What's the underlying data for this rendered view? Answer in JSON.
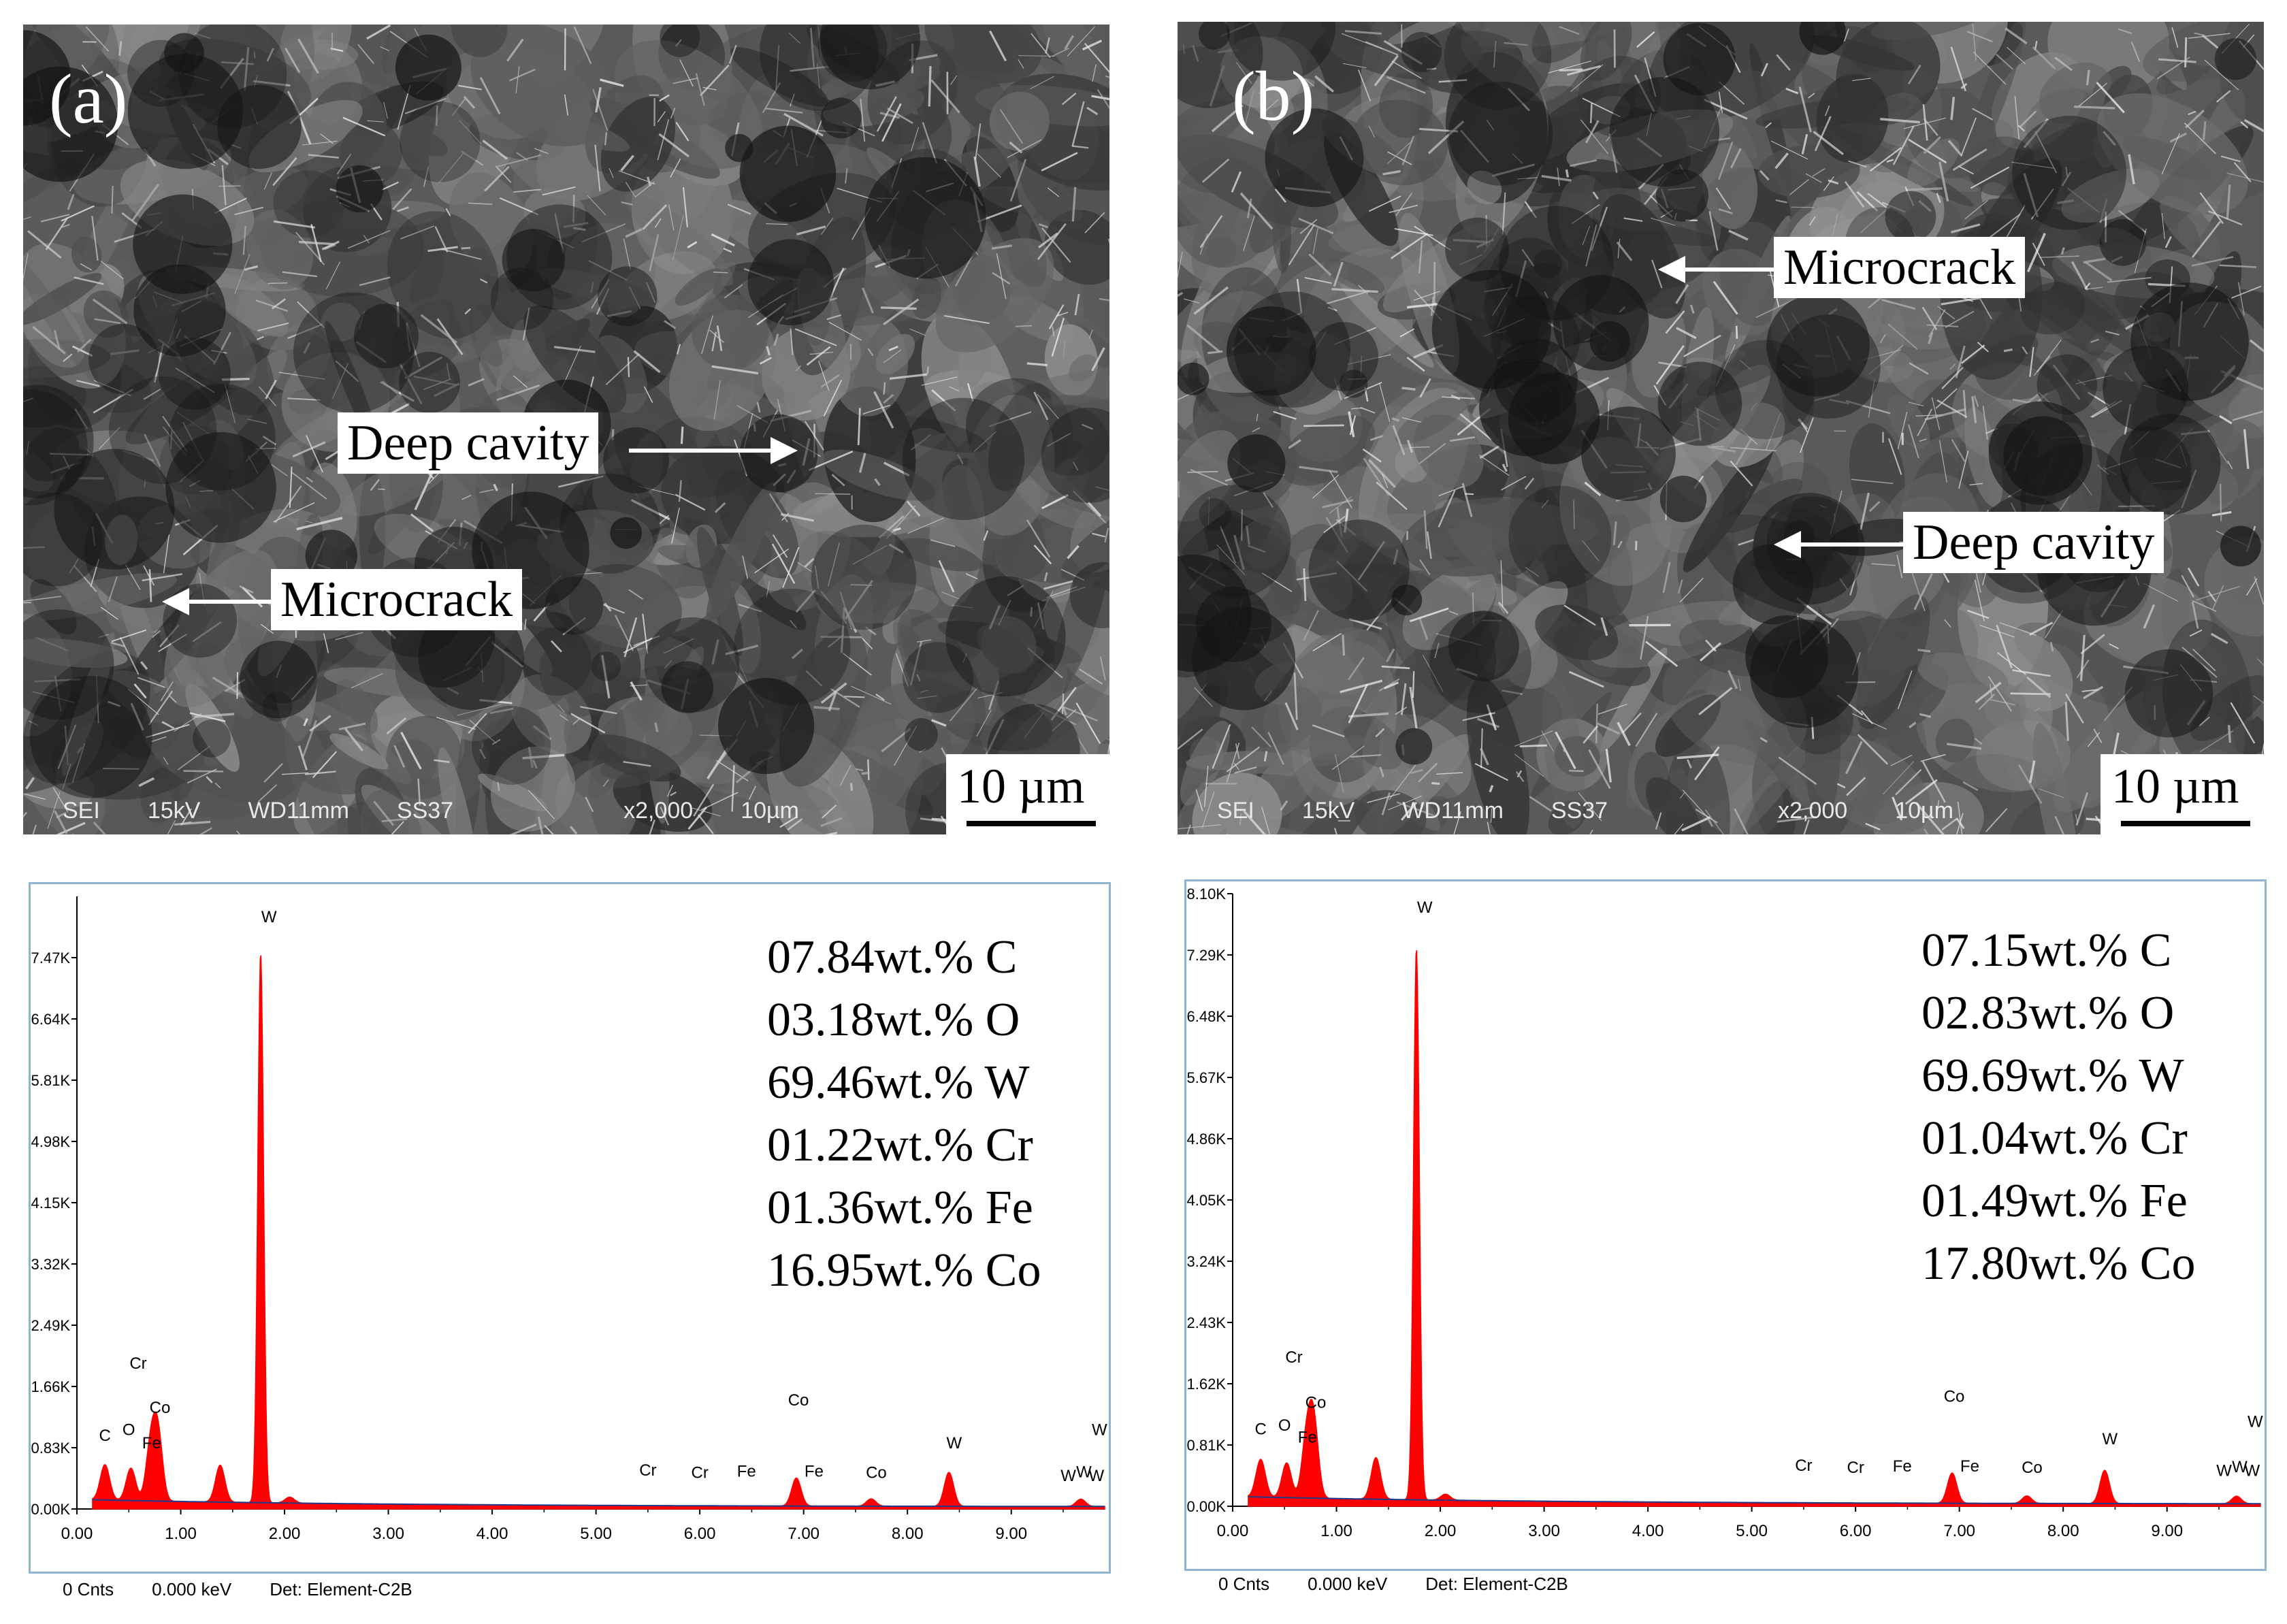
{
  "figure": {
    "panels": [
      {
        "label": "(a)",
        "callouts": {
          "deep_cavity": "Deep cavity",
          "microcrack": "Microcrack"
        },
        "databar": [
          "SEI",
          "15kV",
          "WD11mm",
          "SS37",
          "x2,000",
          "10µm"
        ],
        "scale_text": "10 µm"
      },
      {
        "label": "(b)",
        "callouts": {
          "deep_cavity": "Deep cavity",
          "microcrack": "Microcrack"
        },
        "databar": [
          "SEI",
          "15kV",
          "WD11mm",
          "SS37",
          "x2,000",
          "10µm"
        ],
        "scale_text": "10 µm"
      }
    ]
  },
  "chart_data": [
    {
      "type": "area",
      "title": "",
      "xlabel": "",
      "ylabel": "",
      "xlim": [
        0,
        9.9
      ],
      "ylim": [
        0,
        8.3
      ],
      "x_ticks": [
        "0.00",
        "1.00",
        "2.00",
        "3.00",
        "4.00",
        "5.00",
        "6.00",
        "7.00",
        "8.00",
        "9.00"
      ],
      "y_ticks": [
        "0.00K",
        "0.83K",
        "1.66K",
        "2.49K",
        "3.32K",
        "4.15K",
        "4.98K",
        "5.81K",
        "6.64K",
        "7.47K"
      ],
      "y_tick_values": [
        0,
        0.83,
        1.66,
        2.49,
        3.32,
        4.15,
        4.98,
        5.81,
        6.64,
        7.47
      ],
      "peaks": [
        {
          "x": 0.27,
          "y": 0.48
        },
        {
          "x": 0.52,
          "y": 0.44
        },
        {
          "x": 0.71,
          "y": 0.72
        },
        {
          "x": 0.78,
          "y": 0.9
        },
        {
          "x": 1.38,
          "y": 0.5
        },
        {
          "x": 1.77,
          "y": 7.45
        },
        {
          "x": 2.05,
          "y": 0.08
        },
        {
          "x": 6.93,
          "y": 0.38
        },
        {
          "x": 7.65,
          "y": 0.1
        },
        {
          "x": 8.4,
          "y": 0.46
        },
        {
          "x": 9.67,
          "y": 0.1
        }
      ],
      "peak_labels": [
        {
          "text": "C",
          "x": 0.27,
          "y": 0.92
        },
        {
          "text": "O",
          "x": 0.5,
          "y": 1.0
        },
        {
          "text": "Fe",
          "x": 0.72,
          "y": 0.82
        },
        {
          "text": "Co",
          "x": 0.8,
          "y": 1.3
        },
        {
          "text": "Cr",
          "x": 0.59,
          "y": 1.9
        },
        {
          "text": "W",
          "x": 1.85,
          "y": 7.95
        },
        {
          "text": "Cr",
          "x": 5.5,
          "y": 0.45
        },
        {
          "text": "Cr",
          "x": 6.0,
          "y": 0.42
        },
        {
          "text": "Fe",
          "x": 6.45,
          "y": 0.44
        },
        {
          "text": "Co",
          "x": 6.95,
          "y": 1.4
        },
        {
          "text": "Fe",
          "x": 7.1,
          "y": 0.44
        },
        {
          "text": "Co",
          "x": 7.7,
          "y": 0.42
        },
        {
          "text": "W",
          "x": 8.45,
          "y": 0.82
        },
        {
          "text": "W",
          "x": 9.55,
          "y": 0.38
        },
        {
          "text": "W",
          "x": 9.7,
          "y": 0.43
        },
        {
          "text": "W",
          "x": 9.82,
          "y": 0.38
        },
        {
          "text": "W",
          "x": 9.85,
          "y": 1.0
        }
      ],
      "composition": [
        "07.84wt.% C",
        "03.18wt.% O",
        "69.46wt.% W",
        "01.22wt.% Cr",
        "01.36wt.% Fe",
        "16.95wt.% Co"
      ],
      "footer": [
        "0 Cnts",
        "0.000 keV",
        "Det: Element-C2B"
      ],
      "fill_color": "#ff0000",
      "baseline_color": "#1f3a8a",
      "frame_color": "#8fb4cc"
    },
    {
      "type": "area",
      "title": "",
      "xlabel": "",
      "ylabel": "",
      "xlim": [
        0,
        9.9
      ],
      "ylim": [
        0,
        8.1
      ],
      "x_ticks": [
        "0.00",
        "1.00",
        "2.00",
        "3.00",
        "4.00",
        "5.00",
        "6.00",
        "7.00",
        "8.00",
        "9.00"
      ],
      "y_ticks": [
        "0.00K",
        "0.81K",
        "1.62K",
        "2.43K",
        "3.24K",
        "4.05K",
        "4.86K",
        "5.67K",
        "6.48K",
        "7.29K",
        "8.10K"
      ],
      "y_tick_values": [
        0,
        0.81,
        1.62,
        2.43,
        3.24,
        4.05,
        4.86,
        5.67,
        6.48,
        7.29,
        8.1
      ],
      "peaks": [
        {
          "x": 0.27,
          "y": 0.5
        },
        {
          "x": 0.52,
          "y": 0.46
        },
        {
          "x": 0.71,
          "y": 0.74
        },
        {
          "x": 0.78,
          "y": 1.0
        },
        {
          "x": 1.38,
          "y": 0.55
        },
        {
          "x": 1.77,
          "y": 7.3
        },
        {
          "x": 2.05,
          "y": 0.08
        },
        {
          "x": 6.93,
          "y": 0.4
        },
        {
          "x": 7.65,
          "y": 0.1
        },
        {
          "x": 8.4,
          "y": 0.44
        },
        {
          "x": 9.67,
          "y": 0.1
        }
      ],
      "peak_labels": [
        {
          "text": "C",
          "x": 0.27,
          "y": 0.95
        },
        {
          "text": "O",
          "x": 0.5,
          "y": 1.0
        },
        {
          "text": "Fe",
          "x": 0.72,
          "y": 0.84
        },
        {
          "text": "Co",
          "x": 0.8,
          "y": 1.3
        },
        {
          "text": "Cr",
          "x": 0.59,
          "y": 1.9
        },
        {
          "text": "W",
          "x": 1.85,
          "y": 7.85
        },
        {
          "text": "Cr",
          "x": 5.5,
          "y": 0.47
        },
        {
          "text": "Cr",
          "x": 6.0,
          "y": 0.44
        },
        {
          "text": "Fe",
          "x": 6.45,
          "y": 0.46
        },
        {
          "text": "Co",
          "x": 6.95,
          "y": 1.38
        },
        {
          "text": "Fe",
          "x": 7.1,
          "y": 0.46
        },
        {
          "text": "Co",
          "x": 7.7,
          "y": 0.44
        },
        {
          "text": "W",
          "x": 8.45,
          "y": 0.82
        },
        {
          "text": "W",
          "x": 9.55,
          "y": 0.4
        },
        {
          "text": "W",
          "x": 9.7,
          "y": 0.45
        },
        {
          "text": "W",
          "x": 9.82,
          "y": 0.4
        },
        {
          "text": "W",
          "x": 9.85,
          "y": 1.05
        }
      ],
      "composition": [
        "07.15wt.% C",
        "02.83wt.% O",
        "69.69wt.% W",
        "01.04wt.% Cr",
        "01.49wt.% Fe",
        "17.80wt.% Co"
      ],
      "footer": [
        "0 Cnts",
        "0.000 keV",
        "Det: Element-C2B"
      ],
      "fill_color": "#ff0000",
      "baseline_color": "#1f3a8a",
      "frame_color": "#8fb4cc"
    }
  ]
}
